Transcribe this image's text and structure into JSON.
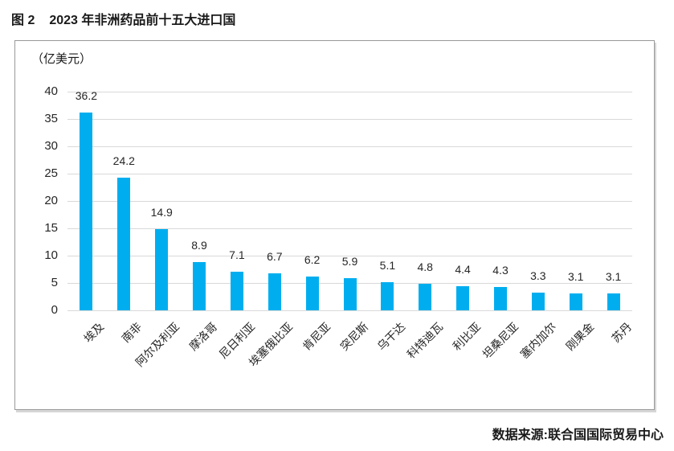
{
  "header": {
    "figure_label": "图 2",
    "title": "2023 年非洲药品前十五大进口国"
  },
  "footer": {
    "source": "数据来源:联合国国际贸易中心"
  },
  "chart_data": {
    "type": "bar",
    "title": "2023 年非洲药品前十五大进口国",
    "unit_label": "（亿美元）",
    "categories": [
      "埃及",
      "南非",
      "阿尔及利亚",
      "摩洛哥",
      "尼日利亚",
      "埃塞俄比亚",
      "肯尼亚",
      "突尼斯",
      "乌干达",
      "科特迪瓦",
      "利比亚",
      "坦桑尼亚",
      "塞内加尔",
      "刚果金",
      "苏丹"
    ],
    "values": [
      36.2,
      24.2,
      14.9,
      8.9,
      7.1,
      6.7,
      6.2,
      5.9,
      5.1,
      4.8,
      4.4,
      4.3,
      3.3,
      3.1,
      3.1
    ],
    "xlabel": "",
    "ylabel": "",
    "ylim": [
      0,
      40
    ],
    "yticks": [
      0,
      5,
      10,
      15,
      20,
      25,
      30,
      35,
      40
    ],
    "grid": true,
    "legend_position": "none",
    "bar_color": "#00AEEF",
    "gridline_color": "#d9d9d9"
  }
}
